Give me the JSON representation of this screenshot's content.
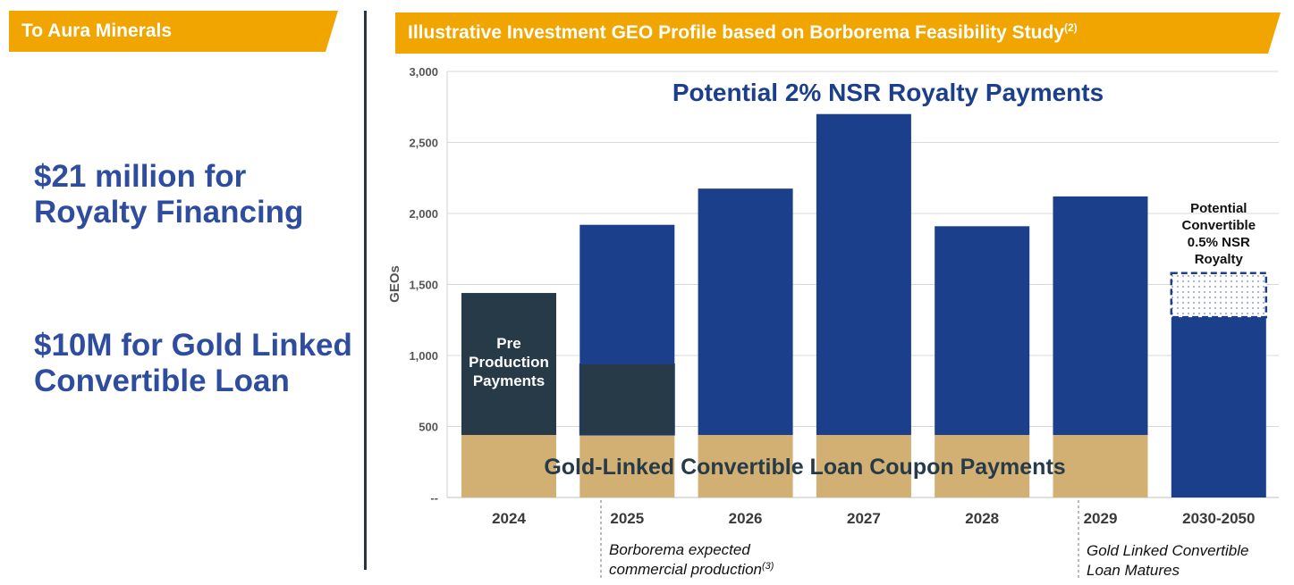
{
  "left_panel": {
    "banner": "To Aura Minerals",
    "headline_1": "$21 million for Royalty Financing",
    "headline_2": "$10M for Gold Linked Convertible Loan"
  },
  "right_panel": {
    "banner": "Illustrative Investment GEO Profile based on Borborema Feasibility Study",
    "banner_sup": "(2)"
  },
  "colors": {
    "banner": "#f0a500",
    "navy": "#1b3f8a",
    "dark_slate": "#263a48",
    "gold": "#d2b073",
    "headline_blue": "#2e4d9e"
  },
  "chart_data": {
    "type": "bar",
    "stacked": true,
    "ylabel": "GEOs",
    "ylim": [
      0,
      3000
    ],
    "yticks": [
      0,
      500,
      1000,
      1500,
      2000,
      2500,
      3000
    ],
    "ytick_labels": [
      "--",
      "500",
      "1,000",
      "1,500",
      "2,000",
      "2,500",
      "3,000"
    ],
    "grid": true,
    "categories": [
      "2024",
      "2025",
      "2026",
      "2027",
      "2028",
      "2029",
      "2030-2050"
    ],
    "series": [
      {
        "name": "Gold-Linked Convertible Loan Coupon Payments",
        "color": "#d2b073",
        "values": [
          440,
          440,
          440,
          440,
          440,
          440,
          0
        ]
      },
      {
        "name": "Pre Production Payments",
        "color": "#263a48",
        "values": [
          1000,
          500,
          0,
          0,
          0,
          0,
          0
        ]
      },
      {
        "name": "Potential 2% NSR Royalty Payments",
        "color": "#1b3f8a",
        "values": [
          0,
          980,
          1735,
          2260,
          1470,
          1680,
          1270
        ]
      },
      {
        "name": "Potential Convertible 0.5% NSR Royalty",
        "pattern": "dotted",
        "values": [
          0,
          0,
          0,
          0,
          0,
          0,
          310
        ]
      }
    ],
    "annotations": {
      "title": "Potential 2% NSR Royalty Payments",
      "coupon_label": "Gold-Linked Convertible Loan Coupon Payments",
      "preproduction_label": [
        "Pre",
        "Production",
        "Payments"
      ],
      "convertible_label": [
        "Potential",
        "Convertible",
        "0.5% NSR",
        "Royalty"
      ],
      "note_2025": {
        "text": "Borborema expected commercial production",
        "sup": "(3)"
      },
      "note_2029": "Gold Linked Convertible Loan Matures"
    }
  }
}
